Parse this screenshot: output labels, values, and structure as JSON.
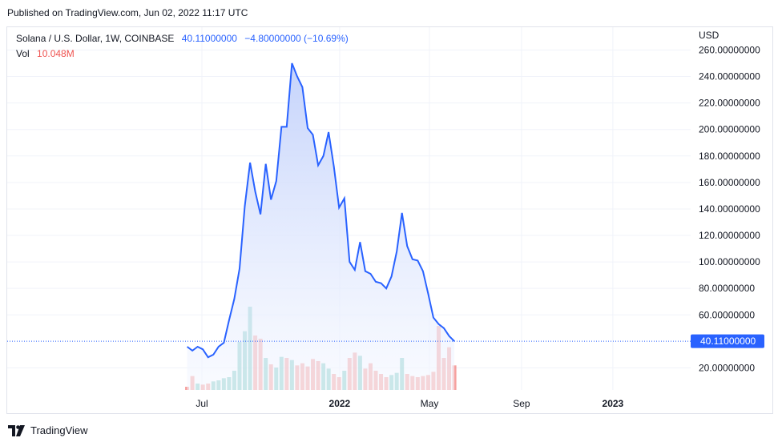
{
  "published": "Published on TradingView.com, Jun 02, 2022 11:17 UTC",
  "legend": {
    "symbol": "Solana / U.S. Dollar, 1W, COINBASE",
    "price": "40.11000000",
    "change": "−4.80000000 (−10.69%)",
    "vol_label": "Vol",
    "vol_value": "10.048M"
  },
  "brand": {
    "name": "TradingView",
    "icon": "tradingview-logo-icon"
  },
  "colors": {
    "line": "#2962ff",
    "area_top": "#c5d3fb",
    "area_bottom": "#f5f8ff",
    "vol_up": "#26a69a",
    "vol_down": "#ef5350",
    "grid": "#f0f3fa",
    "price_tag": "#2962ff"
  },
  "chart_data": {
    "type": "line",
    "currency": "USD",
    "current_price_label": "40.11000000",
    "current_price": 40.11,
    "ylim": [
      0,
      262
    ],
    "y_ticks": [
      {
        "value": 260,
        "label": "260.00000000"
      },
      {
        "value": 240,
        "label": "240.00000000"
      },
      {
        "value": 220,
        "label": "220.00000000"
      },
      {
        "value": 200,
        "label": "200.00000000"
      },
      {
        "value": 180,
        "label": "180.00000000"
      },
      {
        "value": 160,
        "label": "160.00000000"
      },
      {
        "value": 140,
        "label": "140.00000000"
      },
      {
        "value": 120,
        "label": "120.00000000"
      },
      {
        "value": 100,
        "label": "100.00000000"
      },
      {
        "value": 80,
        "label": "80.00000000"
      },
      {
        "value": 60,
        "label": "60.00000000"
      },
      {
        "value": 20,
        "label": "20.00000000"
      }
    ],
    "x_ticks": [
      {
        "date": "2021-07-01",
        "label": "Jul",
        "bold": false
      },
      {
        "date": "2022-01-01",
        "label": "2022",
        "bold": true
      },
      {
        "date": "2022-05-01",
        "label": "May",
        "bold": false
      },
      {
        "date": "2022-09-01",
        "label": "Sep",
        "bold": false
      },
      {
        "date": "2023-01-01",
        "label": "2023",
        "bold": true
      }
    ],
    "x_range": [
      "2021-06-01",
      "2023-04-15"
    ],
    "vol_max": 90,
    "series": [
      {
        "date": "2021-06-07",
        "close": 36,
        "vol": 3,
        "dir": "down"
      },
      {
        "date": "2021-06-14",
        "close": 33,
        "vol": 13,
        "dir": "down"
      },
      {
        "date": "2021-06-21",
        "close": 36,
        "vol": 6,
        "dir": "up"
      },
      {
        "date": "2021-06-28",
        "close": 34,
        "vol": 5,
        "dir": "down"
      },
      {
        "date": "2021-07-05",
        "close": 28,
        "vol": 6,
        "dir": "down"
      },
      {
        "date": "2021-07-12",
        "close": 30,
        "vol": 8,
        "dir": "up"
      },
      {
        "date": "2021-07-19",
        "close": 36,
        "vol": 9,
        "dir": "up"
      },
      {
        "date": "2021-07-26",
        "close": 39,
        "vol": 11,
        "dir": "up"
      },
      {
        "date": "2021-08-02",
        "close": 56,
        "vol": 12,
        "dir": "up"
      },
      {
        "date": "2021-08-09",
        "close": 72,
        "vol": 18,
        "dir": "up"
      },
      {
        "date": "2021-08-16",
        "close": 95,
        "vol": 45,
        "dir": "up"
      },
      {
        "date": "2021-08-23",
        "close": 142,
        "vol": 55,
        "dir": "up"
      },
      {
        "date": "2021-08-30",
        "close": 175,
        "vol": 78,
        "dir": "up"
      },
      {
        "date": "2021-09-06",
        "close": 153,
        "vol": 51,
        "dir": "down"
      },
      {
        "date": "2021-09-13",
        "close": 136,
        "vol": 48,
        "dir": "down"
      },
      {
        "date": "2021-09-20",
        "close": 174,
        "vol": 30,
        "dir": "up"
      },
      {
        "date": "2021-09-27",
        "close": 147,
        "vol": 24,
        "dir": "down"
      },
      {
        "date": "2021-10-04",
        "close": 161,
        "vol": 21,
        "dir": "up"
      },
      {
        "date": "2021-10-11",
        "close": 202,
        "vol": 31,
        "dir": "up"
      },
      {
        "date": "2021-10-18",
        "close": 202,
        "vol": 30,
        "dir": "down"
      },
      {
        "date": "2021-10-25",
        "close": 250,
        "vol": 28,
        "dir": "up"
      },
      {
        "date": "2021-11-01",
        "close": 240,
        "vol": 23,
        "dir": "down"
      },
      {
        "date": "2021-11-08",
        "close": 232,
        "vol": 25,
        "dir": "down"
      },
      {
        "date": "2021-11-15",
        "close": 201,
        "vol": 22,
        "dir": "down"
      },
      {
        "date": "2021-11-22",
        "close": 196,
        "vol": 29,
        "dir": "down"
      },
      {
        "date": "2021-11-29",
        "close": 173,
        "vol": 27,
        "dir": "down"
      },
      {
        "date": "2021-12-06",
        "close": 180,
        "vol": 25,
        "dir": "up"
      },
      {
        "date": "2021-12-13",
        "close": 198,
        "vol": 20,
        "dir": "up"
      },
      {
        "date": "2021-12-20",
        "close": 172,
        "vol": 15,
        "dir": "down"
      },
      {
        "date": "2021-12-27",
        "close": 141,
        "vol": 12,
        "dir": "down"
      },
      {
        "date": "2022-01-03",
        "close": 148,
        "vol": 18,
        "dir": "up"
      },
      {
        "date": "2022-01-10",
        "close": 100,
        "vol": 30,
        "dir": "down"
      },
      {
        "date": "2022-01-17",
        "close": 94,
        "vol": 35,
        "dir": "down"
      },
      {
        "date": "2022-01-24",
        "close": 115,
        "vol": 32,
        "dir": "up"
      },
      {
        "date": "2022-01-31",
        "close": 93,
        "vol": 20,
        "dir": "down"
      },
      {
        "date": "2022-02-07",
        "close": 91,
        "vol": 25,
        "dir": "down"
      },
      {
        "date": "2022-02-14",
        "close": 85,
        "vol": 18,
        "dir": "down"
      },
      {
        "date": "2022-02-21",
        "close": 84,
        "vol": 15,
        "dir": "down"
      },
      {
        "date": "2022-02-28",
        "close": 80,
        "vol": 12,
        "dir": "down"
      },
      {
        "date": "2022-03-07",
        "close": 89,
        "vol": 14,
        "dir": "up"
      },
      {
        "date": "2022-03-14",
        "close": 108,
        "vol": 16,
        "dir": "up"
      },
      {
        "date": "2022-03-21",
        "close": 137,
        "vol": 30,
        "dir": "up"
      },
      {
        "date": "2022-03-28",
        "close": 112,
        "vol": 15,
        "dir": "down"
      },
      {
        "date": "2022-04-04",
        "close": 102,
        "vol": 13,
        "dir": "down"
      },
      {
        "date": "2022-04-11",
        "close": 101,
        "vol": 12,
        "dir": "down"
      },
      {
        "date": "2022-04-18",
        "close": 93,
        "vol": 13,
        "dir": "down"
      },
      {
        "date": "2022-04-25",
        "close": 76,
        "vol": 14,
        "dir": "down"
      },
      {
        "date": "2022-05-02",
        "close": 58,
        "vol": 17,
        "dir": "down"
      },
      {
        "date": "2022-05-09",
        "close": 53,
        "vol": 60,
        "dir": "down"
      },
      {
        "date": "2022-05-16",
        "close": 50,
        "vol": 30,
        "dir": "down"
      },
      {
        "date": "2022-05-23",
        "close": 44,
        "vol": 40,
        "dir": "down"
      },
      {
        "date": "2022-05-30",
        "close": 40.11,
        "vol": 23,
        "dir": "down"
      }
    ]
  }
}
